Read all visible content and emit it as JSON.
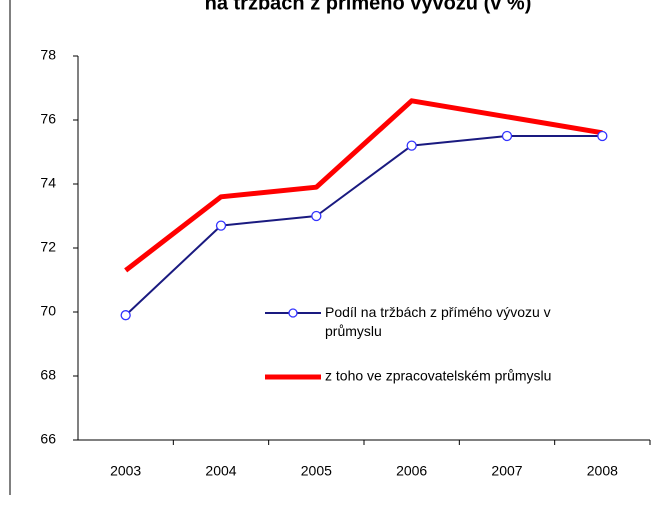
{
  "chart_data": {
    "type": "line",
    "title": "na tržbách z přímého vývozu (v %)",
    "categories": [
      "2003",
      "2004",
      "2005",
      "2006",
      "2007",
      "2008"
    ],
    "series": [
      {
        "name": "Podíl na tržbách z přímého vývozu v průmyslu",
        "color": "#1a1a80",
        "marker": "circle",
        "values": [
          69.9,
          72.7,
          73.0,
          75.2,
          75.5,
          75.5
        ]
      },
      {
        "name": "z toho ve zpracovatelském průmyslu",
        "color": "#ff0000",
        "marker": "none",
        "values": [
          71.3,
          73.6,
          73.9,
          76.6,
          76.1,
          75.6
        ]
      }
    ],
    "ylim": [
      66,
      78
    ],
    "yticks": [
      66,
      68,
      70,
      72,
      74,
      76,
      78
    ],
    "grid": false,
    "legend": "center-right"
  }
}
